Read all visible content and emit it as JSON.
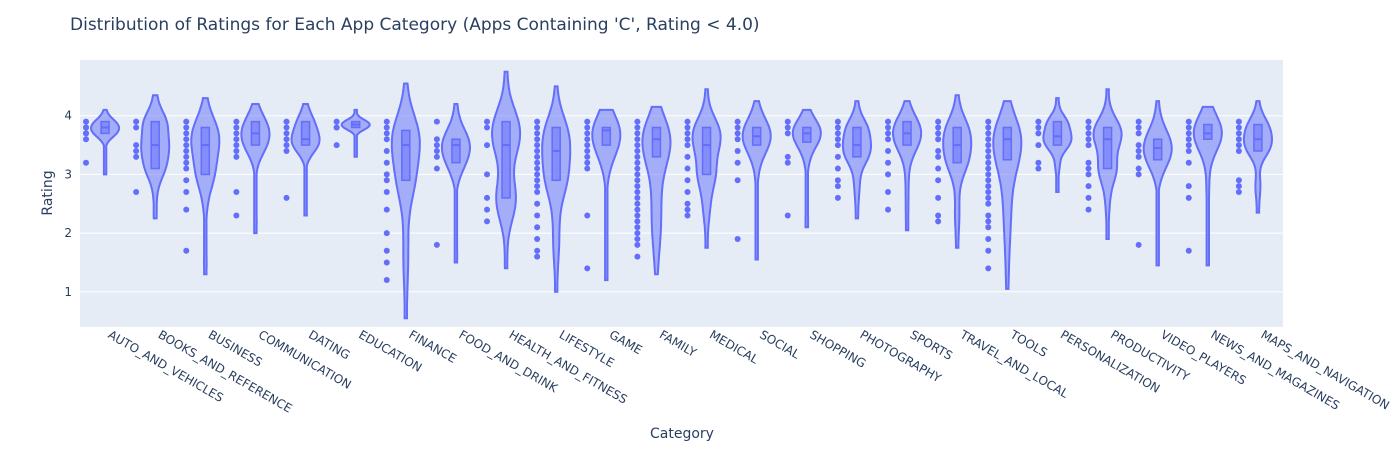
{
  "chart_data": {
    "type": "violin",
    "title": "Distribution of Ratings for Each App Category (Apps Containing 'C', Rating < 4.0)",
    "xlabel": "Category",
    "ylabel": "Rating",
    "ylim": [
      0.4,
      4.95
    ],
    "yticks": [
      1,
      2,
      3,
      4
    ],
    "grid": true,
    "color": "#636efa",
    "plot_bg": "#e5ecf6",
    "categories": [
      {
        "name": "AUTO_AND_VEHICLES",
        "min": 3.0,
        "q1": 3.7,
        "median": 3.8,
        "q3": 3.9,
        "max": 4.1,
        "points": [
          3.9,
          3.8,
          3.8,
          3.7,
          3.7,
          3.6,
          3.2
        ]
      },
      {
        "name": "BOOKS_AND_REFERENCE",
        "min": 2.25,
        "q1": 3.1,
        "median": 3.5,
        "q3": 3.9,
        "max": 4.35,
        "points": [
          3.9,
          3.8,
          3.5,
          3.4,
          3.3,
          2.7
        ]
      },
      {
        "name": "BUSINESS",
        "min": 1.3,
        "q1": 3.0,
        "median": 3.5,
        "q3": 3.8,
        "max": 4.3,
        "points": [
          3.9,
          3.8,
          3.7,
          3.6,
          3.5,
          3.4,
          3.3,
          3.2,
          3.1,
          2.9,
          2.7,
          2.4,
          1.7
        ]
      },
      {
        "name": "COMMUNICATION",
        "min": 2.0,
        "q1": 3.5,
        "median": 3.7,
        "q3": 3.9,
        "max": 4.2,
        "points": [
          3.9,
          3.8,
          3.7,
          3.6,
          3.5,
          3.4,
          3.3,
          2.7,
          2.3
        ]
      },
      {
        "name": "DATING",
        "min": 2.3,
        "q1": 3.5,
        "median": 3.6,
        "q3": 3.9,
        "max": 4.2,
        "points": [
          3.9,
          3.8,
          3.7,
          3.6,
          3.5,
          3.4,
          2.6
        ]
      },
      {
        "name": "EDUCATION",
        "min": 3.3,
        "q1": 3.8,
        "median": 3.85,
        "q3": 3.9,
        "max": 4.1,
        "points": [
          3.9,
          3.8,
          3.8,
          3.5
        ]
      },
      {
        "name": "FINANCE",
        "min": 0.55,
        "q1": 2.9,
        "median": 3.5,
        "q3": 3.75,
        "max": 4.55,
        "points": [
          3.9,
          3.8,
          3.7,
          3.6,
          3.4,
          3.2,
          3.0,
          2.9,
          2.7,
          2.4,
          2.0,
          1.7,
          1.5,
          1.2
        ]
      },
      {
        "name": "FOOD_AND_DRINK",
        "min": 1.5,
        "q1": 3.2,
        "median": 3.5,
        "q3": 3.6,
        "max": 4.2,
        "points": [
          3.9,
          3.6,
          3.5,
          3.4,
          3.3,
          3.1,
          1.8
        ]
      },
      {
        "name": "HEALTH_AND_FITNESS",
        "min": 1.4,
        "q1": 2.6,
        "median": 3.5,
        "q3": 3.9,
        "max": 4.75,
        "points": [
          3.9,
          3.8,
          3.5,
          3.0,
          2.6,
          2.4,
          2.2
        ]
      },
      {
        "name": "LIFESTYLE",
        "min": 1.0,
        "q1": 2.9,
        "median": 3.4,
        "q3": 3.8,
        "max": 4.5,
        "points": [
          3.9,
          3.8,
          3.7,
          3.6,
          3.5,
          3.4,
          3.3,
          3.2,
          3.1,
          3.0,
          2.9,
          2.8,
          2.7,
          2.5,
          2.3,
          2.1,
          1.9,
          1.7,
          1.6
        ]
      },
      {
        "name": "GAME",
        "min": 1.2,
        "q1": 3.5,
        "median": 3.75,
        "q3": 3.8,
        "max": 4.1,
        "points": [
          3.9,
          3.8,
          3.7,
          3.6,
          3.5,
          3.4,
          3.3,
          3.2,
          3.1,
          2.3,
          1.4
        ]
      },
      {
        "name": "FAMILY",
        "min": 1.3,
        "q1": 3.3,
        "median": 3.6,
        "q3": 3.8,
        "max": 4.15,
        "points": [
          3.9,
          3.8,
          3.7,
          3.6,
          3.5,
          3.4,
          3.3,
          3.2,
          3.1,
          3.0,
          2.9,
          2.8,
          2.7,
          2.6,
          2.5,
          2.4,
          2.3,
          2.2,
          2.1,
          2.0,
          1.9,
          1.8,
          1.6
        ]
      },
      {
        "name": "MEDICAL",
        "min": 1.75,
        "q1": 3.0,
        "median": 3.5,
        "q3": 3.8,
        "max": 4.45,
        "points": [
          3.9,
          3.8,
          3.7,
          3.6,
          3.5,
          3.3,
          3.1,
          2.9,
          2.7,
          2.5,
          2.4,
          2.3
        ]
      },
      {
        "name": "SOCIAL",
        "min": 1.55,
        "q1": 3.5,
        "median": 3.65,
        "q3": 3.8,
        "max": 4.25,
        "points": [
          3.9,
          3.8,
          3.7,
          3.6,
          3.4,
          3.2,
          2.9,
          1.9
        ]
      },
      {
        "name": "SHOPPING",
        "min": 2.1,
        "q1": 3.55,
        "median": 3.7,
        "q3": 3.8,
        "max": 4.1,
        "points": [
          3.9,
          3.8,
          3.7,
          3.3,
          3.2,
          2.3
        ]
      },
      {
        "name": "PHOTOGRAPHY",
        "min": 2.25,
        "q1": 3.3,
        "median": 3.5,
        "q3": 3.8,
        "max": 4.25,
        "points": [
          3.9,
          3.8,
          3.7,
          3.6,
          3.5,
          3.3,
          3.1,
          2.9,
          2.8,
          2.6
        ]
      },
      {
        "name": "SPORTS",
        "min": 2.05,
        "q1": 3.5,
        "median": 3.7,
        "q3": 3.9,
        "max": 4.25,
        "points": [
          3.9,
          3.8,
          3.7,
          3.6,
          3.4,
          3.2,
          3.0,
          2.7,
          2.4
        ]
      },
      {
        "name": "TRAVEL_AND_LOCAL",
        "min": 1.75,
        "q1": 3.2,
        "median": 3.5,
        "q3": 3.8,
        "max": 4.35,
        "points": [
          3.9,
          3.8,
          3.7,
          3.6,
          3.4,
          3.3,
          3.1,
          2.9,
          2.6,
          2.3,
          2.2
        ]
      },
      {
        "name": "TOOLS",
        "min": 1.05,
        "q1": 3.25,
        "median": 3.6,
        "q3": 3.8,
        "max": 4.25,
        "points": [
          3.9,
          3.8,
          3.7,
          3.6,
          3.5,
          3.4,
          3.3,
          3.2,
          3.1,
          3.0,
          2.9,
          2.8,
          2.7,
          2.6,
          2.5,
          2.3,
          2.2,
          2.1,
          1.9,
          1.7,
          1.4
        ]
      },
      {
        "name": "PERSONALIZATION",
        "min": 2.7,
        "q1": 3.5,
        "median": 3.65,
        "q3": 3.9,
        "max": 4.3,
        "points": [
          3.9,
          3.8,
          3.7,
          3.5,
          3.2,
          3.1
        ]
      },
      {
        "name": "PRODUCTIVITY",
        "min": 1.9,
        "q1": 3.1,
        "median": 3.6,
        "q3": 3.8,
        "max": 4.45,
        "points": [
          3.9,
          3.8,
          3.7,
          3.6,
          3.5,
          3.2,
          3.1,
          3.0,
          2.8,
          2.6,
          2.4
        ]
      },
      {
        "name": "VIDEO_PLAYERS",
        "min": 1.45,
        "q1": 3.25,
        "median": 3.45,
        "q3": 3.6,
        "max": 4.25,
        "points": [
          3.9,
          3.8,
          3.7,
          3.5,
          3.4,
          3.3,
          3.1,
          3.0,
          1.8
        ]
      },
      {
        "name": "NEWS_AND_MAGAZINES",
        "min": 1.45,
        "q1": 3.6,
        "median": 3.7,
        "q3": 3.85,
        "max": 4.15,
        "points": [
          3.9,
          3.8,
          3.7,
          3.6,
          3.5,
          3.4,
          3.2,
          2.8,
          2.6,
          1.7
        ]
      },
      {
        "name": "MAPS_AND_NAVIGATION",
        "min": 2.35,
        "q1": 3.4,
        "median": 3.6,
        "q3": 3.85,
        "max": 4.25,
        "points": [
          3.9,
          3.8,
          3.7,
          3.6,
          3.5,
          3.4,
          2.9,
          2.8,
          2.7
        ]
      }
    ]
  }
}
